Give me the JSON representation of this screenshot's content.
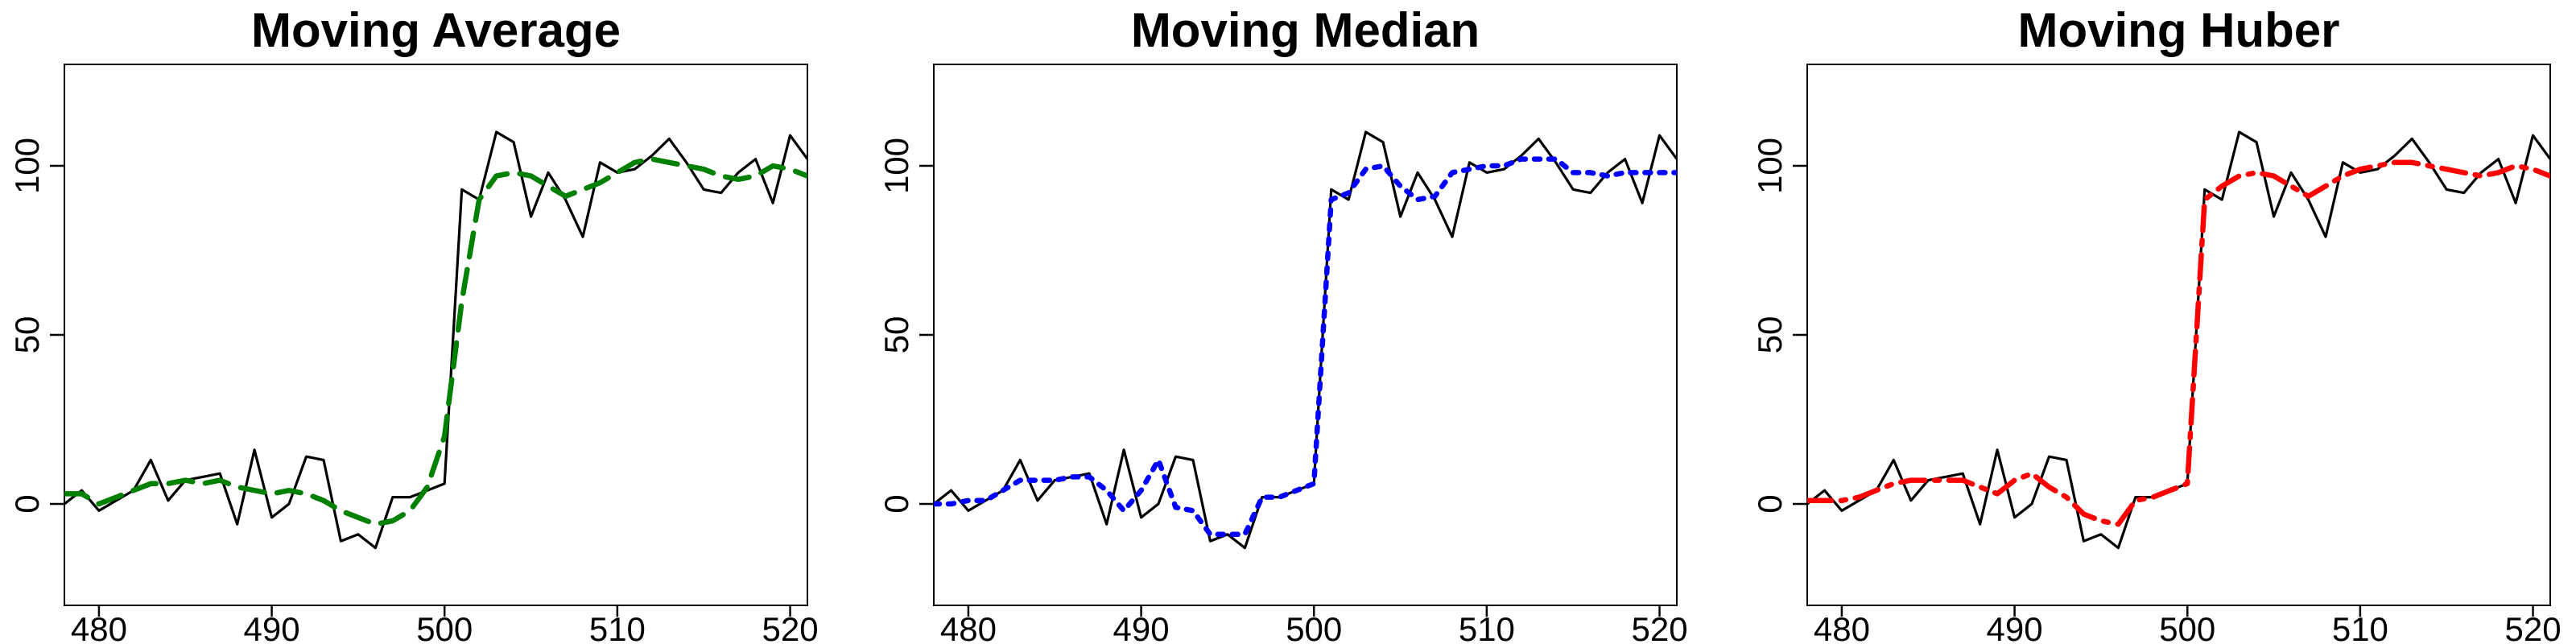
{
  "colors": {
    "raw": "#000000",
    "moving_average": "#008000",
    "moving_median": "#0000ff",
    "moving_huber": "#ff0000"
  },
  "chart_data": [
    {
      "type": "line",
      "title": "Moving Average",
      "xlabel": "",
      "ylabel": "",
      "xlim": [
        478,
        521
      ],
      "ylim": [
        -30,
        130
      ],
      "xticks": [
        480,
        490,
        500,
        510,
        520
      ],
      "yticks": [
        0,
        50,
        100
      ],
      "series": [
        {
          "style": "solid",
          "color": "#000000",
          "x": [
            478,
            479,
            480,
            481,
            482,
            483,
            484,
            485,
            486,
            487,
            488,
            489,
            490,
            491,
            492,
            493,
            494,
            495,
            496,
            497,
            498,
            499,
            500,
            501,
            502,
            503,
            504,
            505,
            506,
            507,
            508,
            509,
            510,
            511,
            512,
            513,
            514,
            515,
            516,
            517,
            518,
            519,
            520,
            521
          ],
          "y": [
            0,
            4,
            -2,
            1,
            4,
            13,
            1,
            7,
            8,
            9,
            -6,
            16,
            -4,
            0,
            14,
            13,
            -11,
            -9,
            -13,
            2,
            2,
            4,
            6,
            93,
            90,
            110,
            107,
            85,
            98,
            90,
            79,
            101,
            98,
            99,
            103,
            108,
            101,
            93,
            92,
            98,
            102,
            89,
            109,
            102
          ]
        },
        {
          "style": "dashed",
          "color": "#008000",
          "x": [
            478,
            479,
            480,
            481,
            482,
            483,
            484,
            485,
            486,
            487,
            488,
            489,
            490,
            491,
            492,
            493,
            494,
            495,
            496,
            497,
            498,
            499,
            500,
            501,
            502,
            503,
            504,
            505,
            506,
            507,
            508,
            509,
            510,
            511,
            512,
            513,
            514,
            515,
            516,
            517,
            518,
            519,
            520,
            521
          ],
          "y": [
            3,
            3,
            0,
            2,
            4,
            6,
            6,
            7,
            6,
            7,
            5,
            4,
            3,
            4,
            3,
            1,
            -2,
            -4,
            -6,
            -5,
            -2,
            5,
            20,
            60,
            90,
            97,
            98,
            97,
            94,
            91,
            93,
            95,
            98,
            101,
            102,
            101,
            100,
            99,
            97,
            96,
            97,
            100,
            99,
            97
          ]
        }
      ]
    },
    {
      "type": "line",
      "title": "Moving Median",
      "xlabel": "",
      "ylabel": "",
      "xlim": [
        478,
        521
      ],
      "ylim": [
        -30,
        130
      ],
      "xticks": [
        480,
        490,
        500,
        510,
        520
      ],
      "yticks": [
        0,
        50,
        100
      ],
      "series": [
        {
          "style": "solid",
          "color": "#000000",
          "x": [
            478,
            479,
            480,
            481,
            482,
            483,
            484,
            485,
            486,
            487,
            488,
            489,
            490,
            491,
            492,
            493,
            494,
            495,
            496,
            497,
            498,
            499,
            500,
            501,
            502,
            503,
            504,
            505,
            506,
            507,
            508,
            509,
            510,
            511,
            512,
            513,
            514,
            515,
            516,
            517,
            518,
            519,
            520,
            521
          ],
          "y": [
            0,
            4,
            -2,
            1,
            4,
            13,
            1,
            7,
            8,
            9,
            -6,
            16,
            -4,
            0,
            14,
            13,
            -11,
            -9,
            -13,
            2,
            2,
            4,
            6,
            93,
            90,
            110,
            107,
            85,
            98,
            90,
            79,
            101,
            98,
            99,
            103,
            108,
            101,
            93,
            92,
            98,
            102,
            89,
            109,
            102
          ]
        },
        {
          "style": "dotted",
          "color": "#0000ff",
          "x": [
            478,
            479,
            480,
            481,
            482,
            483,
            484,
            485,
            486,
            487,
            488,
            489,
            490,
            491,
            492,
            493,
            494,
            495,
            496,
            497,
            498,
            499,
            500,
            501,
            502,
            503,
            504,
            505,
            506,
            507,
            508,
            509,
            510,
            511,
            512,
            513,
            514,
            515,
            516,
            517,
            518,
            519,
            520,
            521
          ],
          "y": [
            0,
            0,
            1,
            1,
            4,
            7,
            7,
            7,
            8,
            8,
            4,
            -2,
            4,
            13,
            -1,
            -2,
            -9,
            -9,
            -9,
            2,
            2,
            4,
            6,
            90,
            92,
            99,
            100,
            94,
            90,
            91,
            98,
            99,
            100,
            100,
            102,
            102,
            102,
            98,
            98,
            97,
            98,
            98,
            98,
            98
          ]
        }
      ]
    },
    {
      "type": "line",
      "title": "Moving Huber",
      "xlabel": "",
      "ylabel": "",
      "xlim": [
        478,
        521
      ],
      "ylim": [
        -30,
        130
      ],
      "xticks": [
        480,
        490,
        500,
        510,
        520
      ],
      "yticks": [
        0,
        50,
        100
      ],
      "series": [
        {
          "style": "solid",
          "color": "#000000",
          "x": [
            478,
            479,
            480,
            481,
            482,
            483,
            484,
            485,
            486,
            487,
            488,
            489,
            490,
            491,
            492,
            493,
            494,
            495,
            496,
            497,
            498,
            499,
            500,
            501,
            502,
            503,
            504,
            505,
            506,
            507,
            508,
            509,
            510,
            511,
            512,
            513,
            514,
            515,
            516,
            517,
            518,
            519,
            520,
            521
          ],
          "y": [
            0,
            4,
            -2,
            1,
            4,
            13,
            1,
            7,
            8,
            9,
            -6,
            16,
            -4,
            0,
            14,
            13,
            -11,
            -9,
            -13,
            2,
            2,
            4,
            6,
            93,
            90,
            110,
            107,
            85,
            98,
            90,
            79,
            101,
            98,
            99,
            103,
            108,
            101,
            93,
            92,
            98,
            102,
            89,
            109,
            102
          ]
        },
        {
          "style": "dashdot",
          "color": "#ff0000",
          "x": [
            478,
            479,
            480,
            481,
            482,
            483,
            484,
            485,
            486,
            487,
            488,
            489,
            490,
            491,
            492,
            493,
            494,
            495,
            496,
            497,
            498,
            499,
            500,
            501,
            502,
            503,
            504,
            505,
            506,
            507,
            508,
            509,
            510,
            511,
            512,
            513,
            514,
            515,
            516,
            517,
            518,
            519,
            520,
            521
          ],
          "y": [
            1,
            1,
            1,
            2,
            4,
            6,
            7,
            7,
            7,
            7,
            5,
            3,
            7,
            9,
            5,
            2,
            -3,
            -5,
            -6,
            1,
            2,
            4,
            6,
            90,
            94,
            97,
            98,
            97,
            94,
            91,
            94,
            97,
            99,
            100,
            101,
            101,
            100,
            99,
            98,
            97,
            98,
            100,
            99,
            97
          ]
        }
      ]
    }
  ]
}
